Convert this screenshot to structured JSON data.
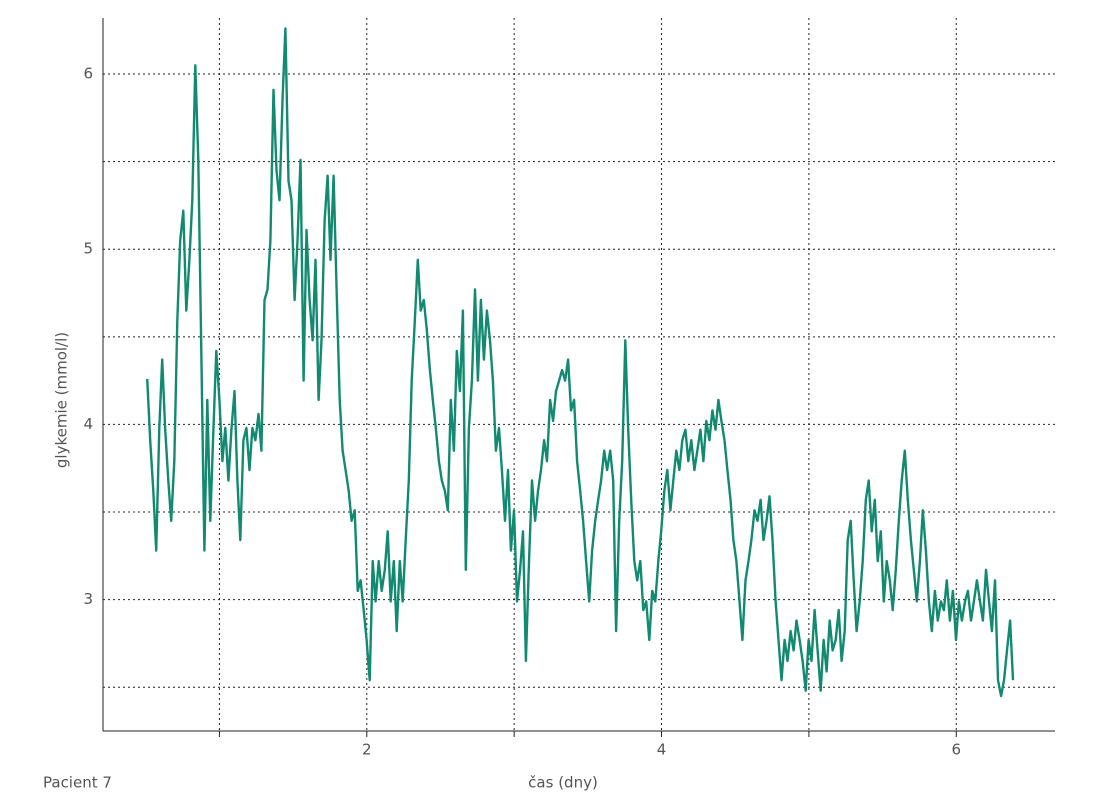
{
  "chart_data": {
    "type": "line",
    "y_label": "glykemie (mmol/l)",
    "x_label": "čas (dny)",
    "annotation": "Pacient 7",
    "color": "#128a70",
    "xlim": [
      0.21,
      6.67
    ],
    "ylim": [
      2.25,
      6.32
    ],
    "xticks": [
      2,
      4,
      6
    ],
    "yticks": [
      3,
      4,
      5,
      6
    ],
    "xgrid": [
      1,
      2,
      3,
      4,
      5,
      6
    ],
    "ygrid": [
      2.5,
      3,
      3.5,
      4,
      4.5,
      5,
      5.5,
      6
    ],
    "grid": true,
    "x": [
      0.51,
      0.53,
      0.551,
      0.571,
      0.592,
      0.612,
      0.632,
      0.653,
      0.673,
      0.694,
      0.714,
      0.734,
      0.755,
      0.775,
      0.796,
      0.816,
      0.836,
      0.857,
      0.877,
      0.898,
      0.918,
      0.938,
      0.959,
      0.979,
      1.0,
      1.02,
      1.04,
      1.061,
      1.081,
      1.102,
      1.122,
      1.142,
      1.163,
      1.183,
      1.204,
      1.224,
      1.244,
      1.265,
      1.285,
      1.306,
      1.326,
      1.346,
      1.367,
      1.387,
      1.408,
      1.428,
      1.448,
      1.469,
      1.489,
      1.51,
      1.53,
      1.55,
      1.571,
      1.591,
      1.612,
      1.632,
      1.652,
      1.673,
      1.693,
      1.714,
      1.734,
      1.754,
      1.775,
      1.795,
      1.816,
      1.836,
      1.856,
      1.877,
      1.897,
      1.918,
      1.938,
      1.958,
      1.979,
      1.999,
      2.02,
      2.04,
      2.06,
      2.081,
      2.101,
      2.122,
      2.142,
      2.162,
      2.183,
      2.203,
      2.224,
      2.244,
      2.264,
      2.285,
      2.305,
      2.326,
      2.346,
      2.366,
      2.387,
      2.407,
      2.428,
      2.448,
      2.468,
      2.489,
      2.509,
      2.53,
      2.55,
      2.57,
      2.591,
      2.611,
      2.632,
      2.652,
      2.672,
      2.693,
      2.713,
      2.734,
      2.754,
      2.774,
      2.795,
      2.815,
      2.836,
      2.856,
      2.876,
      2.897,
      2.917,
      2.938,
      2.958,
      2.978,
      2.999,
      3.019,
      3.04,
      3.06,
      3.08,
      3.101,
      3.121,
      3.142,
      3.162,
      3.182,
      3.203,
      3.223,
      3.244,
      3.264,
      3.284,
      3.305,
      3.325,
      3.346,
      3.366,
      3.386,
      3.407,
      3.427,
      3.448,
      3.468,
      3.488,
      3.509,
      3.529,
      3.55,
      3.57,
      3.59,
      3.611,
      3.631,
      3.652,
      3.672,
      3.692,
      3.713,
      3.733,
      3.754,
      3.774,
      3.794,
      3.815,
      3.835,
      3.856,
      3.876,
      3.896,
      3.917,
      3.937,
      3.958,
      3.978,
      3.998,
      4.019,
      4.039,
      4.06,
      4.08,
      4.1,
      4.121,
      4.141,
      4.162,
      4.182,
      4.202,
      4.223,
      4.243,
      4.264,
      4.284,
      4.304,
      4.325,
      4.345,
      4.366,
      4.386,
      4.406,
      4.427,
      4.447,
      4.468,
      4.488,
      4.508,
      4.529,
      4.549,
      4.57,
      4.59,
      4.61,
      4.631,
      4.651,
      4.672,
      4.692,
      4.712,
      4.733,
      4.753,
      4.774,
      4.794,
      4.814,
      4.835,
      4.855,
      4.876,
      4.896,
      4.916,
      4.937,
      4.957,
      4.978,
      4.998,
      5.018,
      5.039,
      5.059,
      5.08,
      5.1,
      5.12,
      5.141,
      5.161,
      5.182,
      5.202,
      5.222,
      5.243,
      5.263,
      5.284,
      5.304,
      5.324,
      5.345,
      5.365,
      5.386,
      5.406,
      5.426,
      5.447,
      5.467,
      5.488,
      5.508,
      5.528,
      5.549,
      5.569,
      5.59,
      5.61,
      5.63,
      5.651,
      5.671,
      5.692,
      5.712,
      5.732,
      5.753,
      5.773,
      5.794,
      5.814,
      5.834,
      5.855,
      5.875,
      5.896,
      5.916,
      5.936,
      5.957,
      5.977,
      5.998,
      6.018,
      6.038,
      6.059,
      6.079,
      6.1,
      6.12,
      6.14,
      6.161,
      6.181,
      6.202,
      6.222,
      6.242,
      6.263,
      6.283,
      6.304,
      6.324,
      6.344,
      6.365,
      6.385
    ],
    "values": [
      4.26,
      3.91,
      3.62,
      3.28,
      3.98,
      4.37,
      3.97,
      3.68,
      3.45,
      3.79,
      4.59,
      5.05,
      5.22,
      4.65,
      4.94,
      5.28,
      6.05,
      5.51,
      4.42,
      3.28,
      4.14,
      3.45,
      3.97,
      4.42,
      4.14,
      3.79,
      3.98,
      3.68,
      3.97,
      4.19,
      3.68,
      3.34,
      3.91,
      3.98,
      3.74,
      3.98,
      3.91,
      4.06,
      3.85,
      4.71,
      4.77,
      5.05,
      5.91,
      5.45,
      5.28,
      5.85,
      6.26,
      5.39,
      5.28,
      4.71,
      5.05,
      5.51,
      4.25,
      5.11,
      4.71,
      4.48,
      4.94,
      4.14,
      4.48,
      5.16,
      5.42,
      4.94,
      5.42,
      4.77,
      4.14,
      3.85,
      3.74,
      3.62,
      3.45,
      3.51,
      3.05,
      3.11,
      2.94,
      2.77,
      2.54,
      3.22,
      2.99,
      3.22,
      3.05,
      3.17,
      3.39,
      2.99,
      3.22,
      2.82,
      3.22,
      2.99,
      3.34,
      3.68,
      4.25,
      4.59,
      4.94,
      4.65,
      4.71,
      4.54,
      4.31,
      4.14,
      3.98,
      3.79,
      3.68,
      3.62,
      3.51,
      4.14,
      3.85,
      4.42,
      4.19,
      4.65,
      3.17,
      3.98,
      4.25,
      4.77,
      4.25,
      4.71,
      4.37,
      4.65,
      4.48,
      4.25,
      3.85,
      3.98,
      3.74,
      3.45,
      3.74,
      3.28,
      3.51,
      2.99,
      3.17,
      3.39,
      2.65,
      3.22,
      3.68,
      3.45,
      3.62,
      3.74,
      3.91,
      3.79,
      4.14,
      4.02,
      4.19,
      4.25,
      4.31,
      4.25,
      4.37,
      4.08,
      4.14,
      3.79,
      3.62,
      3.45,
      3.22,
      2.99,
      3.28,
      3.45,
      3.57,
      3.68,
      3.85,
      3.74,
      3.85,
      3.68,
      2.82,
      3.45,
      3.79,
      4.48,
      3.97,
      3.57,
      3.22,
      3.11,
      3.22,
      2.94,
      2.99,
      2.77,
      3.05,
      2.99,
      3.22,
      3.39,
      3.62,
      3.74,
      3.51,
      3.68,
      3.85,
      3.74,
      3.91,
      3.97,
      3.79,
      3.91,
      3.74,
      3.85,
      3.97,
      3.79,
      4.02,
      3.91,
      4.08,
      3.97,
      4.14,
      4.02,
      3.91,
      3.74,
      3.57,
      3.34,
      3.22,
      2.99,
      2.77,
      3.11,
      3.22,
      3.34,
      3.51,
      3.45,
      3.57,
      3.34,
      3.45,
      3.59,
      3.34,
      2.99,
      2.77,
      2.54,
      2.77,
      2.65,
      2.82,
      2.71,
      2.88,
      2.77,
      2.65,
      2.48,
      2.77,
      2.65,
      2.94,
      2.71,
      2.48,
      2.77,
      2.59,
      2.88,
      2.71,
      2.77,
      2.94,
      2.65,
      2.82,
      3.34,
      3.45,
      3.11,
      2.82,
      2.99,
      3.22,
      3.57,
      3.68,
      3.39,
      3.57,
      3.22,
      3.39,
      2.99,
      3.22,
      3.11,
      2.94,
      3.17,
      3.45,
      3.68,
      3.85,
      3.57,
      3.34,
      3.17,
      2.99,
      3.22,
      3.51,
      3.28,
      2.99,
      2.82,
      3.05,
      2.88,
      2.99,
      2.94,
      3.11,
      2.88,
      3.05,
      2.77,
      2.99,
      2.88,
      2.99,
      3.05,
      2.88,
      2.99,
      3.11,
      2.99,
      2.88,
      3.17,
      2.99,
      2.82,
      3.11,
      2.54,
      2.45,
      2.54,
      2.71,
      2.88,
      2.54
    ]
  }
}
